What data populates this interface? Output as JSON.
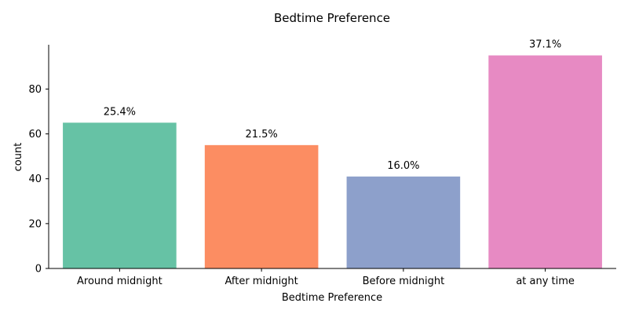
{
  "chart_data": {
    "type": "bar",
    "title": "Bedtime Preference",
    "xlabel": "Bedtime Preference",
    "ylabel": "count",
    "categories": [
      "Around midnight",
      "After midnight",
      "Before midnight",
      "at any time"
    ],
    "values": [
      65,
      55,
      41,
      95
    ],
    "data_labels": [
      "25.4%",
      "21.5%",
      "16.0%",
      "37.1%"
    ],
    "colors": [
      "#66c2a5",
      "#fc8d62",
      "#8da0cb",
      "#e78ac3"
    ],
    "yticks": [
      0,
      20,
      40,
      60,
      80
    ],
    "ylim": [
      0,
      99.75
    ],
    "grid": false,
    "legend": "none"
  }
}
